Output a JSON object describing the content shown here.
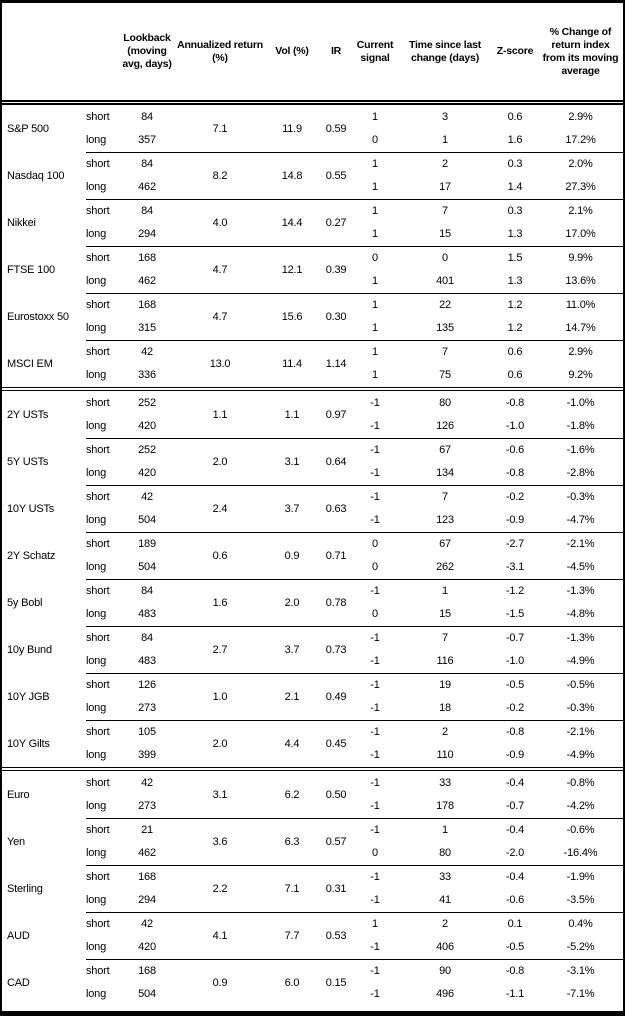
{
  "header": {
    "lookback": "Lookback (moving avg, days)",
    "annualized_return": "Annualized return (%)",
    "vol": "Vol (%)",
    "ir": "IR",
    "current_signal": "Current signal",
    "time_since": "Time since last change (days)",
    "zscore": "Z-score",
    "pct_change": "% Change of return index from its moving average"
  },
  "sections": [
    {
      "id": "equities",
      "instruments": [
        {
          "label": "S&P 500",
          "annualized_return": "7.1",
          "vol": "11.9",
          "ir": "0.59",
          "rows": [
            {
              "leg": "short",
              "lookback": "84",
              "signal": "1",
              "time": "3",
              "zscore": "0.6",
              "pct": "2.9%"
            },
            {
              "leg": "long",
              "lookback": "357",
              "signal": "0",
              "time": "1",
              "zscore": "1.6",
              "pct": "17.2%"
            }
          ]
        },
        {
          "label": "Nasdaq 100",
          "annualized_return": "8.2",
          "vol": "14.8",
          "ir": "0.55",
          "rows": [
            {
              "leg": "short",
              "lookback": "84",
              "signal": "1",
              "time": "2",
              "zscore": "0.3",
              "pct": "2.0%"
            },
            {
              "leg": "long",
              "lookback": "462",
              "signal": "1",
              "time": "17",
              "zscore": "1.4",
              "pct": "27.3%"
            }
          ]
        },
        {
          "label": "Nikkei",
          "annualized_return": "4.0",
          "vol": "14.4",
          "ir": "0.27",
          "rows": [
            {
              "leg": "short",
              "lookback": "84",
              "signal": "1",
              "time": "7",
              "zscore": "0.3",
              "pct": "2.1%"
            },
            {
              "leg": "long",
              "lookback": "294",
              "signal": "1",
              "time": "15",
              "zscore": "1.3",
              "pct": "17.0%"
            }
          ]
        },
        {
          "label": "FTSE 100",
          "annualized_return": "4.7",
          "vol": "12.1",
          "ir": "0.39",
          "rows": [
            {
              "leg": "short",
              "lookback": "168",
              "signal": "0",
              "time": "0",
              "zscore": "1.5",
              "pct": "9.9%"
            },
            {
              "leg": "long",
              "lookback": "462",
              "signal": "1",
              "time": "401",
              "zscore": "1.3",
              "pct": "13.6%"
            }
          ]
        },
        {
          "label": "Eurostoxx 50",
          "annualized_return": "4.7",
          "vol": "15.6",
          "ir": "0.30",
          "rows": [
            {
              "leg": "short",
              "lookback": "168",
              "signal": "1",
              "time": "22",
              "zscore": "1.2",
              "pct": "11.0%"
            },
            {
              "leg": "long",
              "lookback": "315",
              "signal": "1",
              "time": "135",
              "zscore": "1.2",
              "pct": "14.7%"
            }
          ]
        },
        {
          "label": "MSCI EM",
          "annualized_return": "13.0",
          "vol": "11.4",
          "ir": "1.14",
          "rows": [
            {
              "leg": "short",
              "lookback": "42",
              "signal": "1",
              "time": "7",
              "zscore": "0.6",
              "pct": "2.9%"
            },
            {
              "leg": "long",
              "lookback": "336",
              "signal": "1",
              "time": "75",
              "zscore": "0.6",
              "pct": "9.2%"
            }
          ]
        }
      ]
    },
    {
      "id": "rates",
      "instruments": [
        {
          "label": "2Y USTs",
          "annualized_return": "1.1",
          "vol": "1.1",
          "ir": "0.97",
          "rows": [
            {
              "leg": "short",
              "lookback": "252",
              "signal": "-1",
              "time": "80",
              "zscore": "-0.8",
              "pct": "-1.0%"
            },
            {
              "leg": "long",
              "lookback": "420",
              "signal": "-1",
              "time": "126",
              "zscore": "-1.0",
              "pct": "-1.8%"
            }
          ]
        },
        {
          "label": "5Y USTs",
          "annualized_return": "2.0",
          "vol": "3.1",
          "ir": "0.64",
          "rows": [
            {
              "leg": "short",
              "lookback": "252",
              "signal": "-1",
              "time": "67",
              "zscore": "-0.6",
              "pct": "-1.6%"
            },
            {
              "leg": "long",
              "lookback": "420",
              "signal": "-1",
              "time": "134",
              "zscore": "-0.8",
              "pct": "-2.8%"
            }
          ]
        },
        {
          "label": "10Y USTs",
          "annualized_return": "2.4",
          "vol": "3.7",
          "ir": "0.63",
          "rows": [
            {
              "leg": "short",
              "lookback": "42",
              "signal": "-1",
              "time": "7",
              "zscore": "-0.2",
              "pct": "-0.3%"
            },
            {
              "leg": "long",
              "lookback": "504",
              "signal": "-1",
              "time": "123",
              "zscore": "-0.9",
              "pct": "-4.7%"
            }
          ]
        },
        {
          "label": "2Y Schatz",
          "annualized_return": "0.6",
          "vol": "0.9",
          "ir": "0.71",
          "rows": [
            {
              "leg": "short",
              "lookback": "189",
              "signal": "0",
              "time": "67",
              "zscore": "-2.7",
              "pct": "-2.1%"
            },
            {
              "leg": "long",
              "lookback": "504",
              "signal": "0",
              "time": "262",
              "zscore": "-3.1",
              "pct": "-4.5%"
            }
          ]
        },
        {
          "label": "5y Bobl",
          "annualized_return": "1.6",
          "vol": "2.0",
          "ir": "0.78",
          "rows": [
            {
              "leg": "short",
              "lookback": "84",
              "signal": "-1",
              "time": "1",
              "zscore": "-1.2",
              "pct": "-1.3%"
            },
            {
              "leg": "long",
              "lookback": "483",
              "signal": "0",
              "time": "15",
              "zscore": "-1.5",
              "pct": "-4.8%"
            }
          ]
        },
        {
          "label": "10y Bund",
          "annualized_return": "2.7",
          "vol": "3.7",
          "ir": "0.73",
          "rows": [
            {
              "leg": "short",
              "lookback": "84",
              "signal": "-1",
              "time": "7",
              "zscore": "-0.7",
              "pct": "-1.3%"
            },
            {
              "leg": "long",
              "lookback": "483",
              "signal": "-1",
              "time": "116",
              "zscore": "-1.0",
              "pct": "-4.9%"
            }
          ]
        },
        {
          "label": "10Y JGB",
          "annualized_return": "1.0",
          "vol": "2.1",
          "ir": "0.49",
          "rows": [
            {
              "leg": "short",
              "lookback": "126",
              "signal": "-1",
              "time": "19",
              "zscore": "-0.5",
              "pct": "-0.5%"
            },
            {
              "leg": "long",
              "lookback": "273",
              "signal": "-1",
              "time": "18",
              "zscore": "-0.2",
              "pct": "-0.3%"
            }
          ]
        },
        {
          "label": "10Y Gilts",
          "annualized_return": "2.0",
          "vol": "4.4",
          "ir": "0.45",
          "rows": [
            {
              "leg": "short",
              "lookback": "105",
              "signal": "-1",
              "time": "2",
              "zscore": "-0.8",
              "pct": "-2.1%"
            },
            {
              "leg": "long",
              "lookback": "399",
              "signal": "-1",
              "time": "110",
              "zscore": "-0.9",
              "pct": "-4.9%"
            }
          ]
        }
      ]
    },
    {
      "id": "fx",
      "instruments": [
        {
          "label": "Euro",
          "annualized_return": "3.1",
          "vol": "6.2",
          "ir": "0.50",
          "rows": [
            {
              "leg": "short",
              "lookback": "42",
              "signal": "-1",
              "time": "33",
              "zscore": "-0.4",
              "pct": "-0.8%"
            },
            {
              "leg": "long",
              "lookback": "273",
              "signal": "-1",
              "time": "178",
              "zscore": "-0.7",
              "pct": "-4.2%"
            }
          ]
        },
        {
          "label": "Yen",
          "annualized_return": "3.6",
          "vol": "6.3",
          "ir": "0.57",
          "rows": [
            {
              "leg": "short",
              "lookback": "21",
              "signal": "-1",
              "time": "1",
              "zscore": "-0.4",
              "pct": "-0.6%"
            },
            {
              "leg": "long",
              "lookback": "462",
              "signal": "0",
              "time": "80",
              "zscore": "-2.0",
              "pct": "-16.4%"
            }
          ]
        },
        {
          "label": "Sterling",
          "annualized_return": "2.2",
          "vol": "7.1",
          "ir": "0.31",
          "rows": [
            {
              "leg": "short",
              "lookback": "168",
              "signal": "-1",
              "time": "33",
              "zscore": "-0.4",
              "pct": "-1.9%"
            },
            {
              "leg": "long",
              "lookback": "294",
              "signal": "-1",
              "time": "41",
              "zscore": "-0.6",
              "pct": "-3.5%"
            }
          ]
        },
        {
          "label": "AUD",
          "annualized_return": "4.1",
          "vol": "7.7",
          "ir": "0.53",
          "rows": [
            {
              "leg": "short",
              "lookback": "42",
              "signal": "1",
              "time": "2",
              "zscore": "0.1",
              "pct": "0.4%"
            },
            {
              "leg": "long",
              "lookback": "420",
              "signal": "-1",
              "time": "406",
              "zscore": "-0.5",
              "pct": "-5.2%"
            }
          ]
        },
        {
          "label": "CAD",
          "annualized_return": "0.9",
          "vol": "6.0",
          "ir": "0.15",
          "rows": [
            {
              "leg": "short",
              "lookback": "168",
              "signal": "-1",
              "time": "90",
              "zscore": "-0.8",
              "pct": "-3.1%"
            },
            {
              "leg": "long",
              "lookback": "504",
              "signal": "-1",
              "time": "496",
              "zscore": "-1.1",
              "pct": "-7.1%"
            }
          ]
        }
      ]
    }
  ]
}
